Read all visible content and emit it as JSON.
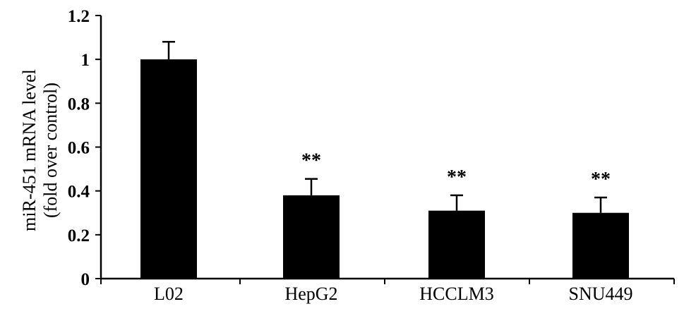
{
  "chart_data": {
    "type": "bar",
    "categories": [
      "L02",
      "HepG2",
      "HCCLM3",
      "SNU449"
    ],
    "values": [
      1.0,
      0.38,
      0.31,
      0.3
    ],
    "error": [
      0.08,
      0.075,
      0.07,
      0.07
    ],
    "annotations": [
      "",
      "**",
      "**",
      "**"
    ],
    "ylabel_lines": [
      "miR-451 mRNA level",
      "(fold over control)"
    ],
    "xlabel": "",
    "title": "",
    "ylim": [
      0,
      1.2
    ],
    "yticks": [
      0,
      0.2,
      0.4,
      0.6,
      0.8,
      1,
      1.2
    ],
    "ytick_labels": [
      "0",
      "0.2",
      "0.4",
      "0.6",
      "0.8",
      "1",
      "1.2"
    ],
    "bar_color": "#000000",
    "grid": false
  }
}
